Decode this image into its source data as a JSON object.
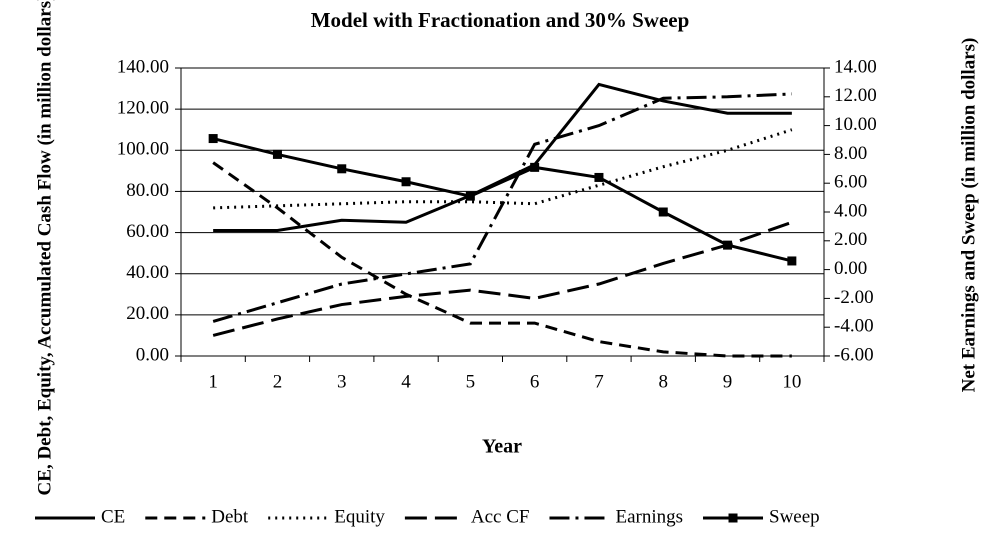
{
  "chart_data": {
    "type": "line",
    "title": "Model with Fractionation and 30% Sweep",
    "x_label": "Year",
    "y_label": "CE, Debt, Equity, Accumulated Cash Flow (in million dollars)",
    "y2_label": "Net Earnings and Sweep (in million dollars)",
    "categories": [
      "1",
      "2",
      "3",
      "4",
      "5",
      "6",
      "7",
      "8",
      "9",
      "10"
    ],
    "ylim": [
      0,
      140
    ],
    "yticks": [
      {
        "value": 0,
        "label": "0.00"
      },
      {
        "value": 20,
        "label": "20.00"
      },
      {
        "value": 40,
        "label": "40.00"
      },
      {
        "value": 60,
        "label": "60.00"
      },
      {
        "value": 80,
        "label": "80.00"
      },
      {
        "value": 100,
        "label": "100.00"
      },
      {
        "value": 120,
        "label": "120.00"
      },
      {
        "value": 140,
        "label": "140.00"
      }
    ],
    "y2lim": [
      -6,
      14
    ],
    "y2ticks": [
      {
        "value": -6,
        "label": "-6.00"
      },
      {
        "value": -4,
        "label": "-4.00"
      },
      {
        "value": -2,
        "label": "-2.00"
      },
      {
        "value": 0,
        "label": "0.00"
      },
      {
        "value": 2,
        "label": "2.00"
      },
      {
        "value": 4,
        "label": "4.00"
      },
      {
        "value": 6,
        "label": "6.00"
      },
      {
        "value": 8,
        "label": "8.00"
      },
      {
        "value": 10,
        "label": "10.00"
      },
      {
        "value": 12,
        "label": "12.00"
      },
      {
        "value": 14,
        "label": "14.00"
      }
    ],
    "grid": true,
    "legend": "bottom",
    "series": [
      {
        "name": "CE",
        "color": "#000000",
        "dash": "none",
        "values": [
          61,
          61,
          66,
          65,
          78,
          93,
          132,
          124,
          118,
          118
        ]
      },
      {
        "name": "Debt",
        "color": "#000000",
        "dash": "12,7",
        "values": [
          94,
          72,
          48,
          30,
          16,
          16,
          7,
          2,
          0,
          0
        ]
      },
      {
        "name": "Equity",
        "color": "#000000",
        "dash": "2,5",
        "values": [
          72,
          73,
          74,
          75,
          75,
          74,
          83,
          92,
          100,
          110
        ]
      },
      {
        "name": "Acc CF",
        "color": "#000000",
        "dash": "22,8",
        "values": [
          10,
          18,
          25,
          29,
          32,
          28,
          35,
          45,
          54,
          65
        ]
      },
      {
        "name": "Earnings",
        "color": "#000000",
        "dash": "20,6,3,6",
        "axis": "y2",
        "values": [
          -3.6,
          -2.3,
          -1.0,
          -0.3,
          0.4,
          8.7,
          10.0,
          11.9,
          12.0,
          12.2
        ]
      },
      {
        "name": "Sweep",
        "color": "#000000",
        "dash": "none",
        "marker": "square",
        "axis": "y2",
        "values": [
          9.1,
          8.0,
          7.0,
          6.1,
          5.1,
          7.1,
          6.4,
          4.0,
          1.7,
          0.6
        ]
      }
    ]
  }
}
